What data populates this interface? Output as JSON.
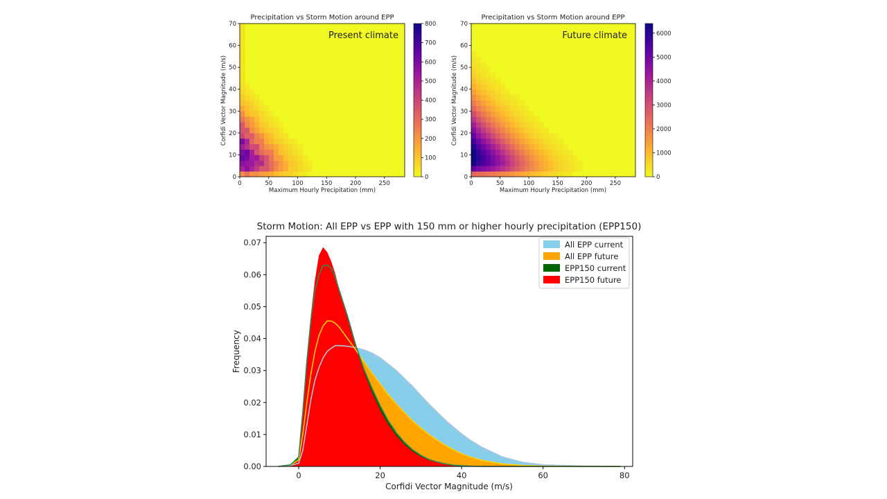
{
  "chart_data": [
    {
      "type": "heatmap",
      "title": "Precipitation vs Storm Motion around EPP",
      "annotation": "Present climate",
      "xlabel": "Maximum Hourly Precipitation (mm)",
      "ylabel": "Corfidi Vector Magnitude (m/s)",
      "xlim": [
        0,
        285
      ],
      "ylim": [
        0,
        70
      ],
      "xticks": [
        "0",
        "50",
        "100",
        "150",
        "200",
        "250"
      ],
      "yticks": [
        "0",
        "10",
        "20",
        "30",
        "40",
        "50",
        "60",
        "70"
      ],
      "colorbar_ticks": [
        "0",
        "100",
        "200",
        "300",
        "400",
        "500",
        "600",
        "700",
        "800"
      ],
      "colorbar_range": [
        0,
        800
      ],
      "colormap": [
        "#f0f921",
        "#fdb42f",
        "#ed7953",
        "#cc4778",
        "#9c179e",
        "#5c01a6",
        "#0d0887"
      ]
    },
    {
      "type": "heatmap",
      "title": "Precipitation vs Storm Motion around EPP",
      "annotation": "Future climate",
      "xlabel": "Maximum Hourly Precipitation (mm)",
      "ylabel": "Corfidi Vector Magnitude (m/s)",
      "xlim": [
        0,
        285
      ],
      "ylim": [
        0,
        70
      ],
      "xticks": [
        "0",
        "50",
        "100",
        "150",
        "200",
        "250"
      ],
      "yticks": [
        "0",
        "10",
        "20",
        "30",
        "40",
        "50",
        "60",
        "70"
      ],
      "colorbar_ticks": [
        "0",
        "1000",
        "2000",
        "3000",
        "4000",
        "5000",
        "6000"
      ],
      "colorbar_range": [
        0,
        6400
      ],
      "colormap": [
        "#f0f921",
        "#fdb42f",
        "#ed7953",
        "#cc4778",
        "#9c179e",
        "#5c01a6",
        "#0d0887"
      ]
    },
    {
      "type": "area",
      "title": "Storm Motion: All EPP vs EPP with 150 mm or higher hourly precipitation (EPP150)",
      "xlabel": "Corfidi Vector Magnitude (m/s)",
      "ylabel": "Frequency",
      "xlim": [
        -8,
        82
      ],
      "ylim": [
        0,
        0.072
      ],
      "xticks": [
        "0",
        "20",
        "40",
        "60",
        "80"
      ],
      "yticks": [
        "0.00",
        "0.01",
        "0.02",
        "0.03",
        "0.04",
        "0.05",
        "0.06",
        "0.07"
      ],
      "legend_position": "top-right",
      "x": [
        -5,
        -2,
        0,
        1,
        2,
        3,
        4,
        5,
        6,
        7,
        8,
        9,
        10,
        12,
        14,
        16,
        18,
        20,
        22,
        24,
        26,
        28,
        30,
        32,
        34,
        36,
        38,
        40,
        42,
        45,
        50,
        55,
        60,
        70,
        79
      ],
      "series": [
        {
          "name": "All EPP current",
          "color": "#87ceeb",
          "values": [
            0,
            0.0003,
            0.001,
            0.005,
            0.013,
            0.021,
            0.027,
            0.031,
            0.034,
            0.036,
            0.037,
            0.0378,
            0.0378,
            0.0376,
            0.0372,
            0.0365,
            0.0355,
            0.034,
            0.032,
            0.03,
            0.0275,
            0.025,
            0.0222,
            0.0195,
            0.017,
            0.0145,
            0.0123,
            0.0102,
            0.0083,
            0.006,
            0.003,
            0.0013,
            0.0005,
            0.0001,
            0
          ]
        },
        {
          "name": "All EPP future",
          "color": "#ffa500",
          "values": [
            0,
            0.0005,
            0.002,
            0.01,
            0.02,
            0.029,
            0.036,
            0.041,
            0.044,
            0.0455,
            0.0455,
            0.0448,
            0.0435,
            0.04,
            0.0365,
            0.0328,
            0.0292,
            0.0258,
            0.0225,
            0.0195,
            0.0168,
            0.0142,
            0.012,
            0.01,
            0.0082,
            0.0066,
            0.0052,
            0.004,
            0.003,
            0.0019,
            0.0008,
            0.0003,
            0.0001,
            0,
            0
          ]
        },
        {
          "name": "EPP150 current",
          "color": "#006400",
          "values": [
            0,
            0.0005,
            0.003,
            0.017,
            0.033,
            0.046,
            0.055,
            0.06,
            0.0628,
            0.063,
            0.062,
            0.059,
            0.055,
            0.047,
            0.038,
            0.0305,
            0.0245,
            0.019,
            0.0143,
            0.0105,
            0.0075,
            0.0052,
            0.0035,
            0.0022,
            0.0014,
            0.0008,
            0.0004,
            0.0002,
            0.0001,
            0,
            0,
            0,
            0,
            0,
            0
          ]
        },
        {
          "name": "EPP150 future",
          "color": "#ff0000",
          "values": [
            0,
            0.0004,
            0.002,
            0.015,
            0.031,
            0.047,
            0.058,
            0.066,
            0.0685,
            0.067,
            0.064,
            0.06,
            0.055,
            0.046,
            0.037,
            0.0295,
            0.023,
            0.0175,
            0.013,
            0.0095,
            0.0067,
            0.0046,
            0.003,
            0.0019,
            0.0012,
            0.0007,
            0.0004,
            0.0002,
            0.0001,
            0,
            0,
            0,
            0,
            0,
            0
          ]
        }
      ]
    }
  ]
}
